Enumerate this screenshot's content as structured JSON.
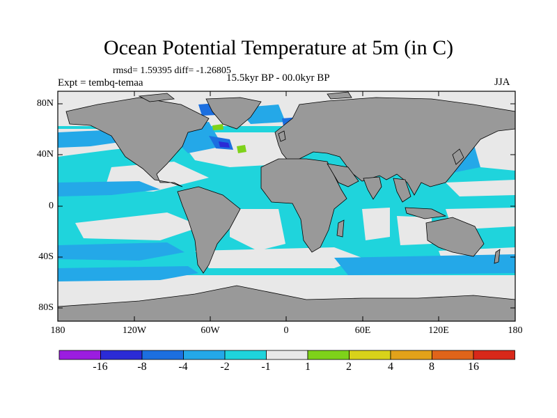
{
  "title": "Ocean Potential Temperature at 5m (in C)",
  "stats": "rmsd= 1.59395 diff= -1.26805",
  "experiment": "Expt = tembq-temaa",
  "period": "15.5kyr BP - 00.0kyr BP",
  "season": "JJA",
  "lat_labels": [
    "80N",
    "40N",
    "0",
    "40S",
    "80S"
  ],
  "lon_labels": [
    "180",
    "120W",
    "60W",
    "0",
    "60E",
    "120E",
    "180"
  ],
  "colorbar": {
    "labels": [
      "-16",
      "-8",
      "-4",
      "-2",
      "-1",
      "1",
      "2",
      "4",
      "8",
      "16"
    ],
    "colors": [
      "#9b1de0",
      "#2b2bd6",
      "#1c6fe0",
      "#24a8e8",
      "#1fd4dc",
      "#e8e8e8",
      "#7ed21a",
      "#d8d21a",
      "#e2a21a",
      "#e0641a",
      "#d8281a"
    ]
  },
  "map_colors": {
    "land": "#999999",
    "ocean_base": "#1fd4dc",
    "near_zero": "#e8e8e8"
  }
}
